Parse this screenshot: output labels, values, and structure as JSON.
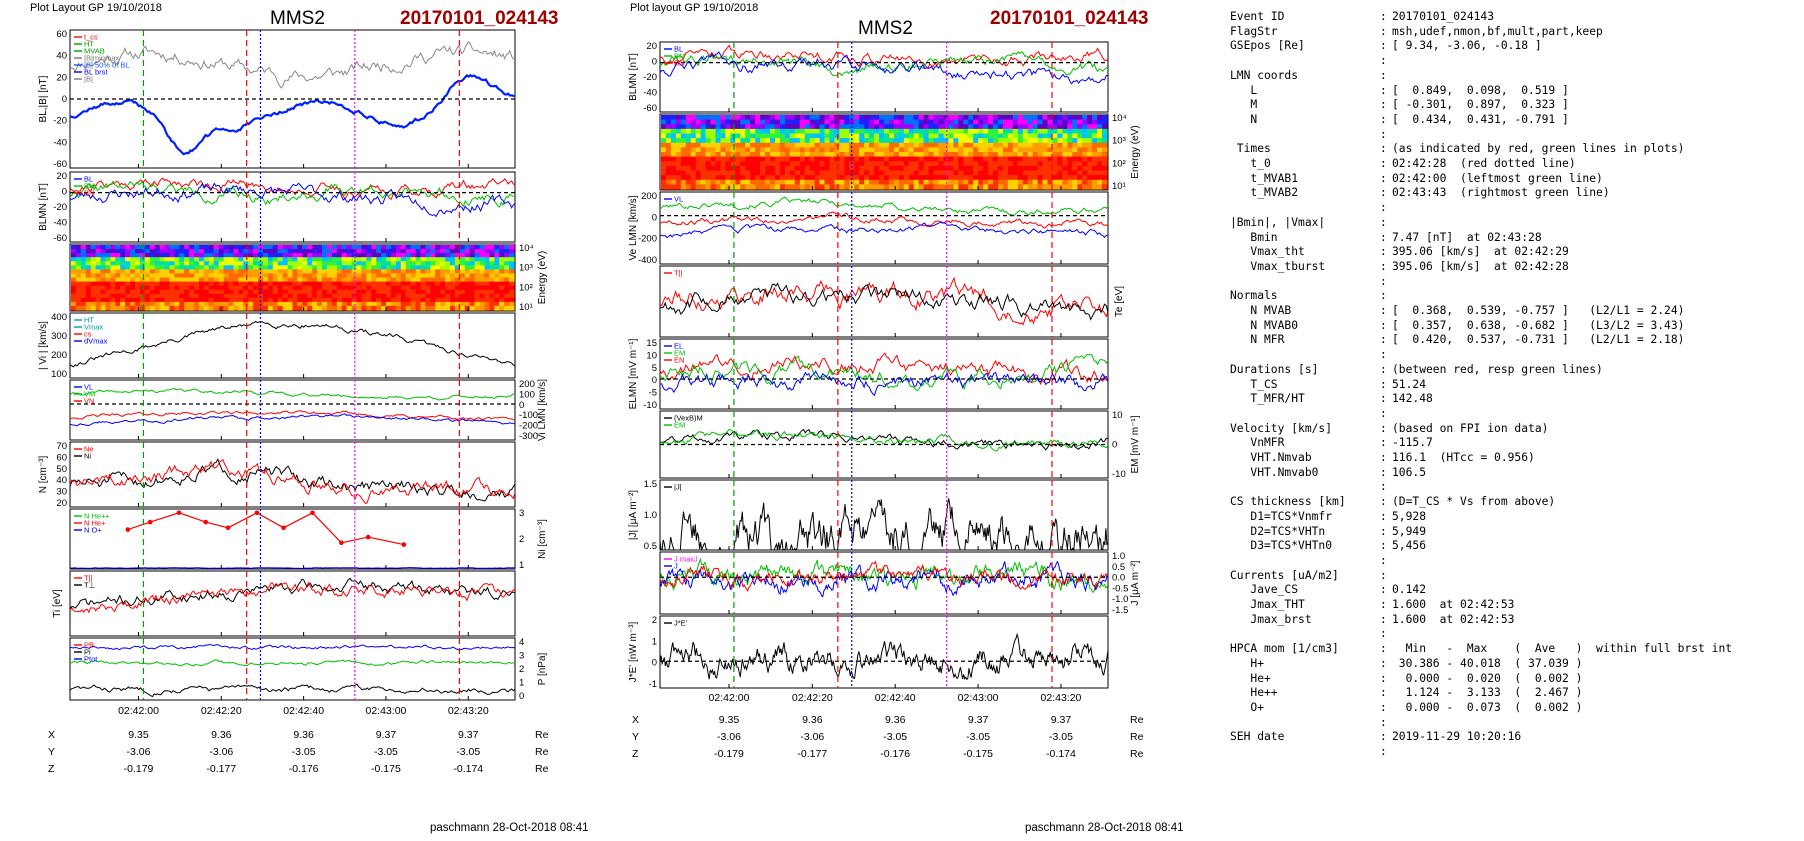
{
  "left": {
    "header": {
      "layout": "Plot Layout GP 19/10/2018",
      "sc": "MMS2",
      "event": "20170101_024143"
    },
    "footer": "paschmann 28-Oct-2018 08:41",
    "time_ticks": [
      "02:42:00",
      "02:42:20",
      "02:42:40",
      "02:43:00",
      "02:43:20"
    ],
    "coords": {
      "labels": [
        "X",
        "Y",
        "Z"
      ],
      "unit": "Re",
      "rows": [
        [
          "9.35",
          "9.36",
          "9.36",
          "9.37",
          "9.37"
        ],
        [
          "-3.06",
          "-3.06",
          "-3.05",
          "-3.05",
          "-3.05"
        ],
        [
          "-0.179",
          "-0.177",
          "-0.176",
          "-0.175",
          "-0.174"
        ]
      ]
    },
    "panels": {
      "b_mag": {
        "ylabel": "BL,|B| [nT]",
        "ticks": [
          "60",
          "40",
          "20",
          "0",
          "-20",
          "-40",
          "-60"
        ],
        "legend": [
          "t_cs",
          "HT",
          "MVAB",
          "|B|minmax",
          "|B| 50% of BL",
          "BL brst",
          "|B|"
        ]
      },
      "b_lmn": {
        "ylabel": "BLMN [nT]",
        "ticks": [
          "20",
          "0",
          "-20",
          "-40",
          "-60"
        ],
        "legend": [
          "BL",
          "BM",
          "BN"
        ]
      },
      "ion_spec": {
        "ylabel": "Energy (eV)",
        "ticks": [
          "10⁴",
          "10³",
          "10²",
          "10¹"
        ]
      },
      "vi_mag": {
        "ylabel": "| Vi | [km/s]",
        "ticks": [
          "400",
          "300",
          "200",
          "100"
        ],
        "legend": [
          "HT",
          "Vmax",
          "cs",
          "dVmax"
        ]
      },
      "vi_lmn": {
        "ylabel": "Vi LMN [km/s]",
        "ticks": [
          "200",
          "100",
          "0",
          "-100",
          "-200",
          "-300"
        ],
        "legend": [
          "VL",
          "VM",
          "VN"
        ]
      },
      "density": {
        "ylabel": "N [cm⁻³]",
        "ticks": [
          "70",
          "60",
          "50",
          "40",
          "30",
          "20"
        ],
        "legend": [
          "Ne",
          "Ni"
        ]
      },
      "hpca": {
        "ylabel": "Ni [cm⁻³]",
        "ticks": [
          "3",
          "2",
          "1"
        ],
        "legend": [
          "N He++",
          "N He+",
          "N O+"
        ]
      },
      "temp": {
        "ylabel": "Ti [eV]",
        "legend": [
          "T||",
          "T⊥"
        ]
      },
      "pressure": {
        "ylabel": "P [nPa]",
        "ticks": [
          "4",
          "3",
          "2",
          "1",
          "0"
        ],
        "legend": [
          "PB",
          "Pi",
          "Ptot"
        ]
      }
    }
  },
  "mid": {
    "header": {
      "layout": "Plot layout GP 19/10/2018",
      "sc": "MMS2",
      "event": "20170101_024143"
    },
    "footer": "paschmann 28-Oct-2018 08:41",
    "time_ticks": [
      "02:42:00",
      "02:42:20",
      "02:42:40",
      "02:43:00",
      "02:43:20"
    ],
    "coords": {
      "labels": [
        "X",
        "Y",
        "Z"
      ],
      "unit": "Re",
      "rows": [
        [
          "9.35",
          "9.36",
          "9.36",
          "9.37",
          "9.37"
        ],
        [
          "-3.06",
          "-3.06",
          "-3.05",
          "-3.05",
          "-3.05"
        ],
        [
          "-0.179",
          "-0.177",
          "-0.176",
          "-0.175",
          "-0.174"
        ]
      ]
    },
    "panels": {
      "b_lmn": {
        "ylabel": "BLMN [nT]",
        "ticks": [
          "20",
          "0",
          "-20",
          "-40",
          "-60"
        ],
        "legend": [
          "BL",
          "BM",
          "BN"
        ]
      },
      "e_spec": {
        "ylabel": "Energy (eV)",
        "ticks": [
          "10⁴",
          "10³",
          "10²",
          "10¹"
        ]
      },
      "ve_lmn": {
        "ylabel": "Ve LMN [km/s]",
        "ticks": [
          "200",
          "0",
          "-200",
          "-400"
        ],
        "legend": [
          "VL"
        ]
      },
      "te": {
        "ylabel": "Te [eV]",
        "legend": [
          "T||"
        ]
      },
      "e_lmn": {
        "ylabel": "ELMN [mV m⁻¹]",
        "ticks": [
          "15",
          "10",
          "5",
          "0",
          "-5",
          "-10"
        ],
        "legend": [
          "EL",
          "EM",
          "EN"
        ]
      },
      "em": {
        "ylabel": "EM [mV m⁻¹]",
        "ticks": [
          "10",
          "0",
          "-10"
        ],
        "legend": [
          "(VexB)M",
          "EM"
        ]
      },
      "j_mag": {
        "ylabel": "|J| [μA m⁻²]",
        "ticks": [
          "1.5",
          "1.0",
          "0.5"
        ],
        "legend": [
          "|J|"
        ]
      },
      "j_lmn": {
        "ylabel": "J [μA m⁻²]",
        "ticks": [
          "1.0",
          "0.5",
          "0.0",
          "-0.5",
          "-1.0",
          "-1.5"
        ],
        "legend": [
          "J maxJ",
          "J"
        ]
      },
      "jdote": {
        "ylabel": "J*E' [nW m⁻³]",
        "ticks": [
          "2",
          "1",
          "0",
          "-1"
        ],
        "legend": [
          "J*E'"
        ]
      }
    }
  },
  "summary": [
    [
      "Event ID",
      ":",
      "20170101_024143"
    ],
    [
      "FlagStr",
      ":",
      "msh,udef,nmon,bf,mult,part,keep"
    ],
    [
      "GSEpos [Re]",
      ":",
      "[ 9.34, -3.06, -0.18 ]"
    ],
    [
      "",
      ":",
      ""
    ],
    [
      "LMN coords",
      ":",
      ""
    ],
    [
      "   L",
      ":",
      "[  0.849,  0.098,  0.519 ]"
    ],
    [
      "   M",
      ":",
      "[ -0.301,  0.897,  0.323 ]"
    ],
    [
      "   N",
      ":",
      "[  0.434,  0.431, -0.791 ]"
    ],
    [
      "",
      ":",
      ""
    ],
    [
      " Times",
      ":",
      "(as indicated by red, green lines in plots)"
    ],
    [
      "   t_0",
      ":",
      "02:42:28  (red dotted line)"
    ],
    [
      "   t_MVAB1",
      ":",
      "02:42:00  (leftmost green line)"
    ],
    [
      "   t_MVAB2",
      ":",
      "02:43:43  (rightmost green line)"
    ],
    [
      "",
      ":",
      ""
    ],
    [
      "|Bmin|, |Vmax|",
      ":",
      ""
    ],
    [
      "   Bmin",
      ":",
      "7.47 [nT]  at 02:43:28"
    ],
    [
      "   Vmax_tht",
      ":",
      "395.06 [km/s]  at 02:42:29"
    ],
    [
      "   Vmax_tburst",
      ":",
      "395.06 [km/s]  at 02:42:28"
    ],
    [
      "",
      ":",
      ""
    ],
    [
      "Normals",
      ":",
      ""
    ],
    [
      "   N MVAB",
      ":",
      "[  0.368,  0.539, -0.757 ]   (L2/L1 = 2.24)"
    ],
    [
      "   N MVAB0",
      ":",
      "[  0.357,  0.638, -0.682 ]   (L3/L2 = 3.43)"
    ],
    [
      "   N MFR",
      ":",
      "[  0.420,  0.537, -0.731 ]   (L2/L1 = 2.18)"
    ],
    [
      "",
      ":",
      ""
    ],
    [
      "Durations [s]",
      ":",
      "(between red, resp green lines)"
    ],
    [
      "   T_CS",
      ":",
      "51.24"
    ],
    [
      "   T_MFR/HT",
      ":",
      "142.48"
    ],
    [
      "",
      ":",
      ""
    ],
    [
      "Velocity [km/s]",
      ":",
      "(based on FPI ion data)"
    ],
    [
      "   VnMFR",
      ":",
      "-115.7"
    ],
    [
      "   VHT.Nmvab",
      ":",
      "116.1  (HTcc = 0.956)"
    ],
    [
      "   VHT.Nmvab0",
      ":",
      "106.5"
    ],
    [
      "",
      ":",
      ""
    ],
    [
      "CS thickness [km]",
      ":",
      "(D=T_CS * Vs from above)"
    ],
    [
      "   D1=TCS*Vnmfr",
      ":",
      "5,928"
    ],
    [
      "   D2=TCS*VHTn",
      ":",
      "5,949"
    ],
    [
      "   D3=TCS*VHTn0",
      ":",
      "5,456"
    ],
    [
      "",
      ":",
      ""
    ],
    [
      "Currents [uA/m2]",
      ":",
      ""
    ],
    [
      "   Jave_CS",
      ":",
      "0.142"
    ],
    [
      "   Jmax_THT",
      ":",
      "1.600  at 02:42:53"
    ],
    [
      "   Jmax_brst",
      ":",
      "1.600  at 02:42:53"
    ],
    [
      "",
      ":",
      ""
    ],
    [
      "HPCA mom [1/cm3]",
      ":",
      "  Min   -  Max    (  Ave   )  within full brst int"
    ],
    [
      "   H+",
      ":",
      " 30.386 - 40.018  ( 37.039 )"
    ],
    [
      "   He+",
      ":",
      "  0.000 -  0.020  (  0.002 )"
    ],
    [
      "   He++",
      ":",
      "  1.124 -  3.133  (  2.467 )"
    ],
    [
      "   O+",
      ":",
      "  0.000 -  0.073  (  0.002 )"
    ],
    [
      "",
      ":",
      ""
    ],
    [
      "SEH date",
      ":",
      "2019-11-29 10:20:16"
    ],
    [
      "",
      ":",
      ""
    ]
  ],
  "chart_data": [
    {
      "type": "line",
      "title": "MMS2 20170101_024143",
      "xlabel": "time",
      "x_ticks": [
        "02:42:00",
        "02:42:20",
        "02:42:40",
        "02:43:00",
        "02:43:20"
      ],
      "panels": [
        {
          "ylabel": "BL,|B| [nT]",
          "ylim": [
            -60,
            60
          ],
          "series": [
            {
              "name": "|B|",
              "y_range": [
                10,
                55
              ]
            },
            {
              "name": "BL brst",
              "y_range": [
                -45,
                20
              ]
            }
          ]
        },
        {
          "ylabel": "BLMN [nT]",
          "ylim": [
            -60,
            25
          ],
          "series": [
            {
              "name": "BL",
              "y_range": [
                -45,
                20
              ]
            },
            {
              "name": "BM",
              "y_range": [
                -10,
                20
              ]
            },
            {
              "name": "BN",
              "y_range": [
                -15,
                15
              ]
            }
          ]
        },
        {
          "ylabel": "Energy (eV)",
          "type": "heatmap",
          "ylim": [
            "10¹",
            "10⁴"
          ]
        },
        {
          "ylabel": "| Vi | [km/s]",
          "ylim": [
            80,
            400
          ],
          "series": [
            {
              "name": "|Vi|",
              "y_range": [
                100,
                395
              ]
            }
          ]
        },
        {
          "ylabel": "Vi LMN [km/s]",
          "ylim": [
            -330,
            220
          ],
          "series": [
            {
              "name": "VL",
              "y_range": [
                50,
                150
              ]
            },
            {
              "name": "VM",
              "y_range": [
                -250,
                -50
              ]
            },
            {
              "name": "VN",
              "y_range": [
                -280,
                -30
              ]
            }
          ]
        },
        {
          "ylabel": "N [cm⁻³]",
          "ylim": [
            15,
            72
          ],
          "series": [
            {
              "name": "Ne",
              "y_range": [
                25,
                66
              ]
            },
            {
              "name": "Ni",
              "y_range": [
                25,
                65
              ]
            }
          ]
        },
        {
          "ylabel": "Ni [cm⁻³]",
          "ylim": [
            0,
            3.2
          ],
          "series": [
            {
              "name": "N He++",
              "x": [
                "02:41:57",
                "02:42:04",
                "02:42:13",
                "02:42:21",
                "02:42:28",
                "02:42:37",
                "02:42:46",
                "02:42:53",
                "02:43:02",
                "02:43:10",
                "02:43:19"
              ],
              "values": [
                2.1,
                2.5,
                3.0,
                2.5,
                2.2,
                3.0,
                2.2,
                3.0,
                1.4,
                1.7,
                1.3
              ]
            }
          ]
        },
        {
          "ylabel": "Ti [eV]",
          "series": [
            {
              "name": "T||"
            },
            {
              "name": "T⊥"
            }
          ]
        },
        {
          "ylabel": "P [nPa]",
          "ylim": [
            0,
            4
          ],
          "series": [
            {
              "name": "PB",
              "y_range": [
                3,
                3.8
              ]
            },
            {
              "name": "Pi",
              "y_range": [
                2,
                2.8
              ]
            },
            {
              "name": "Ptot",
              "y_range": [
                0.2,
                1
              ]
            }
          ]
        }
      ]
    },
    {
      "type": "line",
      "title": "MMS2 20170101_024143",
      "xlabel": "time",
      "x_ticks": [
        "02:42:00",
        "02:42:20",
        "02:42:40",
        "02:43:00",
        "02:43:20"
      ],
      "panels": [
        {
          "ylabel": "BLMN [nT]",
          "ylim": [
            -60,
            25
          ]
        },
        {
          "ylabel": "Energy (eV)",
          "type": "heatmap",
          "ylim": [
            "10¹",
            "10⁴"
          ]
        },
        {
          "ylabel": "Ve LMN [km/s]",
          "ylim": [
            -450,
            220
          ]
        },
        {
          "ylabel": "Te [eV]"
        },
        {
          "ylabel": "ELMN [mV m⁻¹]",
          "ylim": [
            -12,
            16
          ]
        },
        {
          "ylabel": "EM [mV m⁻¹]",
          "ylim": [
            -14,
            14
          ]
        },
        {
          "ylabel": "|J| [μA m⁻²]",
          "ylim": [
            0,
            1.6
          ]
        },
        {
          "ylabel": "J [μA m⁻²]",
          "ylim": [
            -1.6,
            1.1
          ]
        },
        {
          "ylabel": "J*E' [nW m⁻³]",
          "ylim": [
            -1.3,
            2.2
          ]
        }
      ]
    }
  ]
}
